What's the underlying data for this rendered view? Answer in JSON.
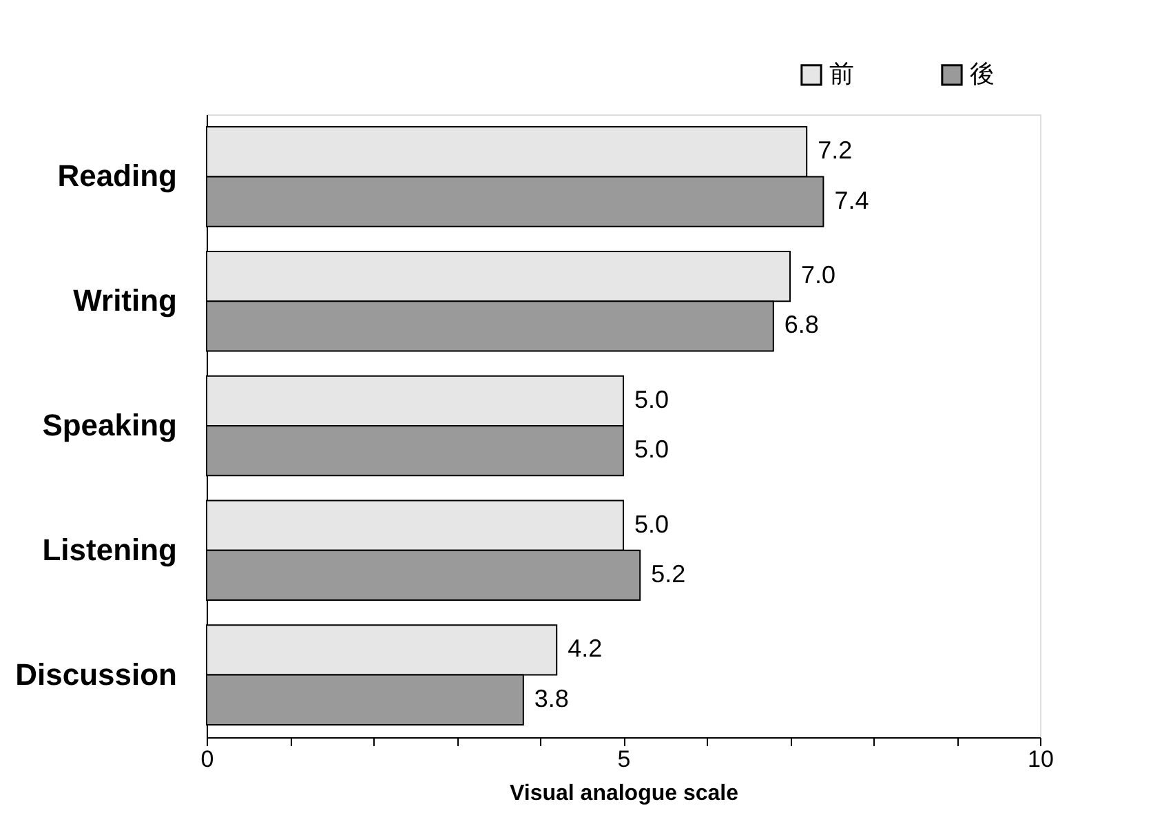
{
  "chart_data": {
    "type": "bar",
    "orientation": "horizontal",
    "xlabel": "Visual analogue scale",
    "categories": [
      "Reading",
      "Writing",
      "Speaking",
      "Listening",
      "Discussion"
    ],
    "series": [
      {
        "name": "前",
        "color": "#e6e6e6",
        "values": [
          7.2,
          7.0,
          5.0,
          5.0,
          4.2
        ],
        "value_labels": [
          "7.2",
          "7.0",
          "5.0",
          "5.0",
          "4.2"
        ]
      },
      {
        "name": "後",
        "color": "#9a9a9a",
        "values": [
          7.4,
          6.8,
          5.0,
          5.2,
          3.8
        ],
        "value_labels": [
          "7.4",
          "6.8",
          "5.0",
          "5.2",
          "3.8"
        ]
      }
    ],
    "xlim": [
      0,
      10
    ],
    "xticks": [
      0,
      {
        "value": 1,
        "label": null
      },
      {
        "value": 2,
        "label": null
      },
      {
        "value": 3,
        "label": null
      },
      {
        "value": 4,
        "label": null
      },
      5,
      {
        "value": 6,
        "label": null
      },
      {
        "value": 7,
        "label": null
      },
      {
        "value": 8,
        "label": null
      },
      {
        "value": 9,
        "label": null
      },
      10
    ],
    "grid": false,
    "legend": "top right"
  }
}
